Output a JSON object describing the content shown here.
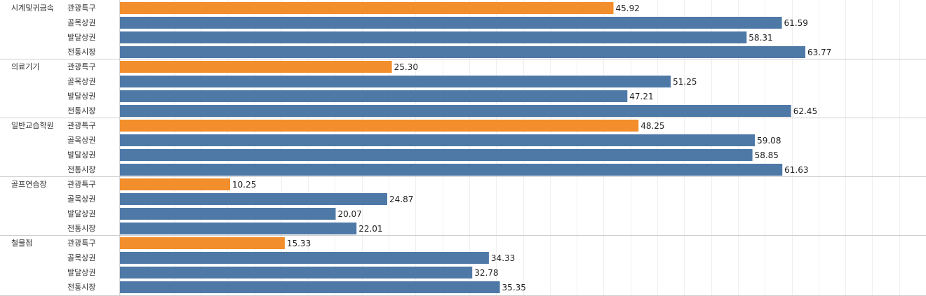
{
  "chart_data": {
    "type": "bar",
    "orientation": "horizontal",
    "grid": true,
    "xlim": [
      0,
      75
    ],
    "colors": {
      "highlight": "#f28e2b",
      "default": "#4e79a7"
    },
    "highlight_category": "관광특구",
    "groups": [
      {
        "name": "시계및귀금속",
        "bars": [
          {
            "category": "관광특구",
            "value": 45.92,
            "label": "45.92"
          },
          {
            "category": "골목상권",
            "value": 61.59,
            "label": "61.59"
          },
          {
            "category": "발달상권",
            "value": 58.31,
            "label": "58.31"
          },
          {
            "category": "전통시장",
            "value": 63.77,
            "label": "63.77"
          }
        ]
      },
      {
        "name": "의료기기",
        "bars": [
          {
            "category": "관광특구",
            "value": 25.3,
            "label": "25.30"
          },
          {
            "category": "골목상권",
            "value": 51.25,
            "label": "51.25"
          },
          {
            "category": "발달상권",
            "value": 47.21,
            "label": "47.21"
          },
          {
            "category": "전통시장",
            "value": 62.45,
            "label": "62.45"
          }
        ]
      },
      {
        "name": "일반교습학원",
        "bars": [
          {
            "category": "관광특구",
            "value": 48.25,
            "label": "48.25"
          },
          {
            "category": "골목상권",
            "value": 59.08,
            "label": "59.08"
          },
          {
            "category": "발달상권",
            "value": 58.85,
            "label": "58.85"
          },
          {
            "category": "전통시장",
            "value": 61.63,
            "label": "61.63"
          }
        ]
      },
      {
        "name": "골프연습장",
        "bars": [
          {
            "category": "관광특구",
            "value": 10.25,
            "label": "10.25"
          },
          {
            "category": "골목상권",
            "value": 24.87,
            "label": "24.87"
          },
          {
            "category": "발달상권",
            "value": 20.07,
            "label": "20.07"
          },
          {
            "category": "전통시장",
            "value": 22.01,
            "label": "22.01"
          }
        ]
      },
      {
        "name": "철물점",
        "bars": [
          {
            "category": "관광특구",
            "value": 15.33,
            "label": "15.33"
          },
          {
            "category": "골목상권",
            "value": 34.33,
            "label": "34.33"
          },
          {
            "category": "발달상권",
            "value": 32.78,
            "label": "32.78"
          },
          {
            "category": "전통시장",
            "value": 35.35,
            "label": "35.35"
          }
        ]
      }
    ]
  }
}
